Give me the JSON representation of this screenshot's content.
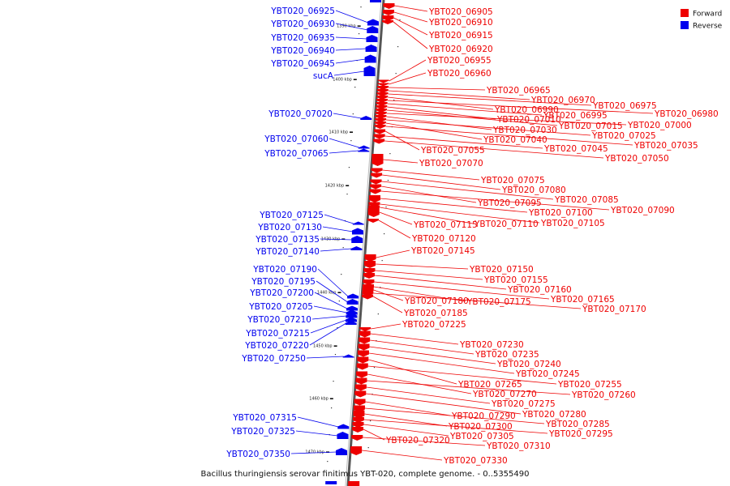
{
  "caption": "Bacillus thuringiensis serovar finitimus YBT-020, complete genome. - 0..5355490",
  "legend": [
    {
      "label": "Forward",
      "color": "#ee0000"
    },
    {
      "label": "Reverse",
      "color": "#0000ee"
    }
  ],
  "colors": {
    "forward": "#ee0000",
    "reverse": "#0000ee",
    "backbone": "#888888"
  },
  "ticks": [
    "1390 kbp",
    "1400 kbp",
    "1410 kbp",
    "1420 kbp",
    "1430 kbp",
    "1440 kbp",
    "1450 kbp",
    "1460 kbp",
    "1470 kbp"
  ],
  "reverse_genes": [
    "YBT020_06925",
    "YBT020_06930",
    "YBT020_06935",
    "YBT020_06940",
    "YBT020_06945",
    "sucA",
    "YBT020_07020",
    "YBT020_07060",
    "YBT020_07065",
    "YBT020_07125",
    "YBT020_07130",
    "YBT020_07135",
    "YBT020_07140",
    "YBT020_07190",
    "YBT020_07195",
    "YBT020_07200",
    "YBT020_07205",
    "YBT020_07210",
    "YBT020_07215",
    "YBT020_07220",
    "YBT020_07250",
    "YBT020_07315",
    "YBT020_07325",
    "YBT020_07350"
  ],
  "forward_genes": [
    "YBT020_06905",
    "YBT020_06910",
    "YBT020_06915",
    "YBT020_06920",
    "YBT020_06955",
    "YBT020_06960",
    "YBT020_06965",
    "YBT020_06970",
    "YBT020_06975",
    "YBT020_06990",
    "YBT020_06980",
    "YBT020_06995",
    "YBT020_07010",
    "YBT020_07015",
    "YBT020_07000",
    "YBT020_07030",
    "YBT020_07025",
    "YBT020_07040",
    "YBT020_07035",
    "YBT020_07055",
    "YBT020_07045",
    "YBT020_07050",
    "YBT020_07070",
    "YBT020_07075",
    "YBT020_07080",
    "YBT020_07085",
    "YBT020_07095",
    "YBT020_07090",
    "YBT020_07100",
    "YBT020_07115",
    "YBT020_07110",
    "YBT020_07105",
    "YBT020_07120",
    "YBT020_07145",
    "YBT020_07150",
    "YBT020_07155",
    "YBT020_07160",
    "YBT020_07165",
    "YBT020_07180",
    "YBT020_07175",
    "YBT020_07170",
    "YBT020_07185",
    "YBT020_07225",
    "YBT020_07230",
    "YBT020_07235",
    "YBT020_07240",
    "YBT020_07245",
    "YBT020_07265",
    "YBT020_07255",
    "YBT020_07270",
    "YBT020_07260",
    "YBT020_07275",
    "YBT020_07280",
    "YBT020_07290",
    "YBT020_07285",
    "YBT020_07300",
    "YBT020_07295",
    "YBT020_07305",
    "YBT020_07320",
    "YBT020_07310",
    "YBT020_07330"
  ]
}
